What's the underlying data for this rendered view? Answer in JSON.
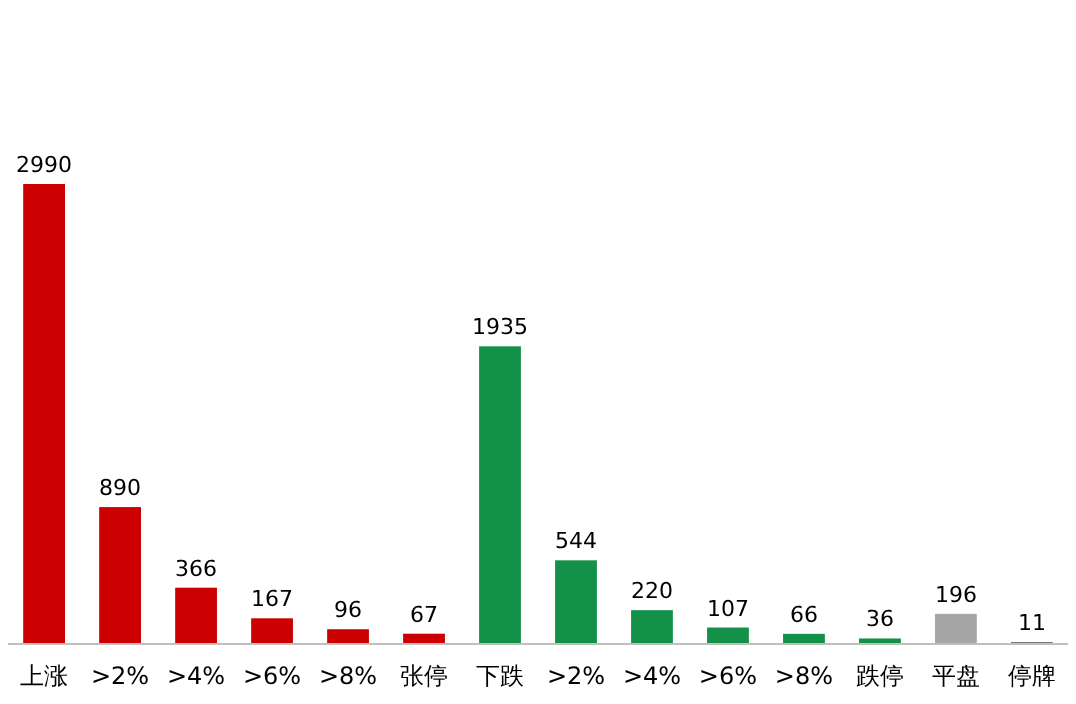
{
  "chart_data": {
    "type": "bar",
    "categories": [
      "上涨",
      ">2%",
      ">4%",
      ">6%",
      ">8%",
      "张停",
      "下跌",
      ">2%",
      ">4%",
      ">6%",
      ">8%",
      "跌停",
      "平盘",
      "停牌"
    ],
    "values": [
      2990,
      890,
      366,
      167,
      96,
      67,
      1935,
      544,
      220,
      107,
      66,
      36,
      196,
      11
    ],
    "colors": [
      "#cc0000",
      "#cc0000",
      "#cc0000",
      "#cc0000",
      "#cc0000",
      "#cc0000",
      "#139148",
      "#139148",
      "#139148",
      "#139148",
      "#139148",
      "#139148",
      "#a6a6a6",
      "#404040"
    ],
    "data_labels": true
  }
}
